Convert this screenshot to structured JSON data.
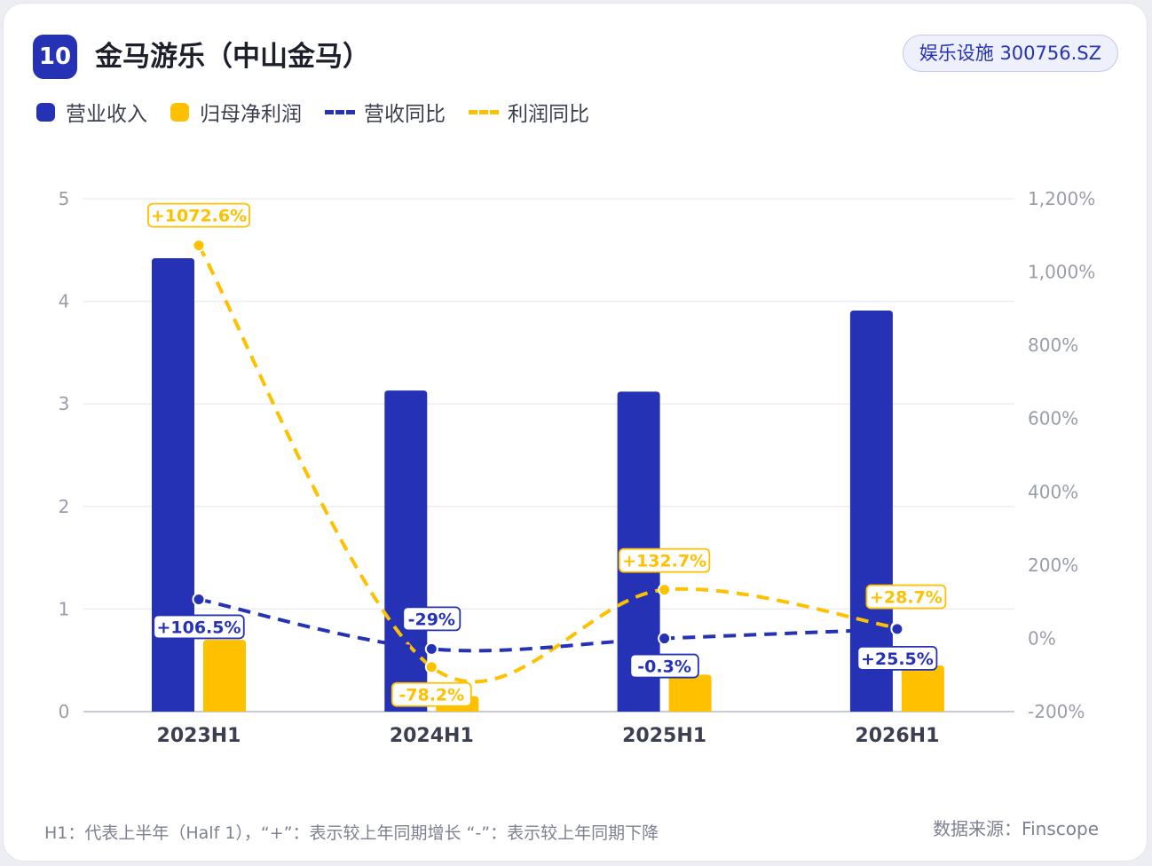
{
  "header": {
    "rank": "10",
    "title": "金马游乐（中山金马）",
    "tag": "娱乐设施 300756.SZ"
  },
  "legend": {
    "revenue": "营业收入",
    "profit": "归母净利润",
    "rev_yoy": "营收同比",
    "profit_yoy": "利润同比"
  },
  "footer": {
    "note": "H1：代表上半年（Half 1），“+”：表示较上年同期增长        “-”：表示较上年同期下降",
    "source": "数据来源：Finscope"
  },
  "colors": {
    "revenue": "#2532b5",
    "profit": "#ffc000",
    "rev_yoy_line": "#2532b5",
    "profit_yoy_line": "#ffc000"
  },
  "chart_data": {
    "type": "bar",
    "categories": [
      "2023H1",
      "2024H1",
      "2025H1",
      "2026H1"
    ],
    "series": [
      {
        "name": "营业收入",
        "type": "bar",
        "axis": "left",
        "values": [
          4.42,
          3.13,
          3.12,
          3.91
        ]
      },
      {
        "name": "归母净利润",
        "type": "bar",
        "axis": "left",
        "values": [
          0.7,
          0.15,
          0.36,
          0.45
        ]
      },
      {
        "name": "营收同比",
        "type": "line",
        "axis": "right",
        "values": [
          106.5,
          -29,
          -0.3,
          25.5
        ],
        "labels": [
          "+106.5%",
          "-29%",
          "-0.3%",
          "+25.5%"
        ]
      },
      {
        "name": "利润同比",
        "type": "line",
        "axis": "right",
        "values": [
          1072.6,
          -78.2,
          132.7,
          28.7
        ],
        "labels": [
          "+1072.6%",
          "-78.2%",
          "+132.7%",
          "+28.7%"
        ]
      }
    ],
    "y_left": {
      "ticks": [
        "0",
        "1",
        "2",
        "3",
        "4",
        "5"
      ],
      "min": 0,
      "max": 5
    },
    "y_right": {
      "ticks": [
        "-200%",
        "0%",
        "200%",
        "400%",
        "600%",
        "800%",
        "1,000%",
        "1,200%"
      ],
      "min": -200,
      "max": 1200
    },
    "grid": true,
    "legend_position": "top-left"
  }
}
